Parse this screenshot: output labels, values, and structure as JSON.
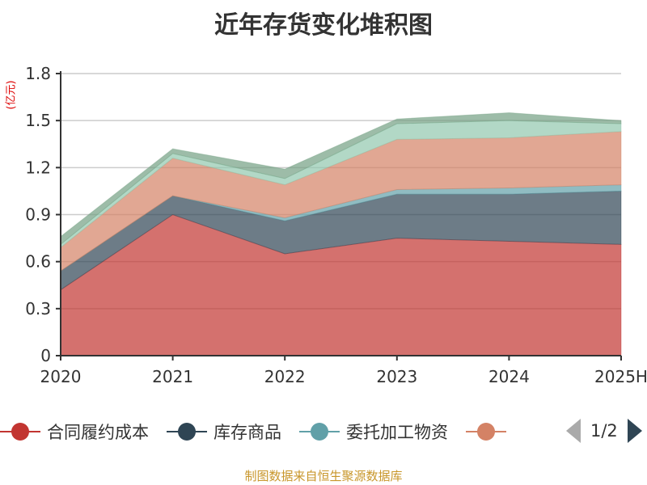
{
  "title": "近年存货变化堆积图",
  "footer": "制图数据来自恒生聚源数据库",
  "legend_page": "1/2",
  "chart_data": {
    "type": "area",
    "stacked": true,
    "title": "近年存货变化堆积图",
    "ylabel": "(亿元)",
    "xlabel": "",
    "categories": [
      "2020",
      "2021",
      "2022",
      "2023",
      "2024",
      "2025H"
    ],
    "ylim": [
      0,
      1.8
    ],
    "yticks": [
      "0",
      "0.3",
      "0.6",
      "0.9",
      "1.2",
      "1.5",
      "1.8"
    ],
    "grid": true,
    "legend_position": "bottom",
    "series": [
      {
        "name": "合同履约成本",
        "color": "#c23531",
        "values": [
          0.42,
          0.9,
          0.65,
          0.75,
          0.73,
          0.71
        ]
      },
      {
        "name": "库存商品",
        "color": "#2f4554",
        "values": [
          0.12,
          0.12,
          0.21,
          0.28,
          0.3,
          0.34
        ]
      },
      {
        "name": "委托加工物资",
        "color": "#61a0a8",
        "values": [
          0.0,
          0.0,
          0.02,
          0.03,
          0.04,
          0.04
        ]
      },
      {
        "name": "",
        "color": "#d48265",
        "values": [
          0.15,
          0.24,
          0.21,
          0.32,
          0.32,
          0.34
        ]
      },
      {
        "name": "",
        "color": "#91c7ae",
        "values": [
          0.02,
          0.03,
          0.04,
          0.1,
          0.11,
          0.05
        ]
      },
      {
        "name": "",
        "color": "#749f83",
        "values": [
          0.05,
          0.03,
          0.06,
          0.03,
          0.05,
          0.02
        ]
      }
    ]
  }
}
